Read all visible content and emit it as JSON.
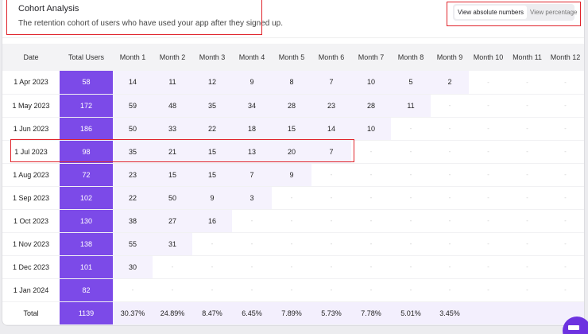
{
  "header": {
    "title": "Cohort Analysis",
    "subtitle": "The retention cohort of users who have used your app after they signed up."
  },
  "toggle": {
    "options": [
      {
        "label": "View absolute numbers",
        "active": true
      },
      {
        "label": "View percentage",
        "active": false
      }
    ]
  },
  "table": {
    "columns": [
      "Date",
      "Total Users",
      "Month 1",
      "Month 2",
      "Month 3",
      "Month 4",
      "Month 5",
      "Month 6",
      "Month 7",
      "Month 8",
      "Month 9",
      "Month 10",
      "Month 11",
      "Month 12"
    ],
    "empty_placeholder": "-",
    "rows": [
      {
        "date": "1 Apr 2023",
        "total": "58",
        "months": [
          "14",
          "11",
          "12",
          "9",
          "8",
          "7",
          "10",
          "5",
          "2"
        ]
      },
      {
        "date": "1 May 2023",
        "total": "172",
        "months": [
          "59",
          "48",
          "35",
          "34",
          "28",
          "23",
          "28",
          "11"
        ]
      },
      {
        "date": "1 Jun 2023",
        "total": "186",
        "months": [
          "50",
          "33",
          "22",
          "18",
          "15",
          "14",
          "10"
        ]
      },
      {
        "date": "1 Jul 2023",
        "total": "98",
        "months": [
          "35",
          "21",
          "15",
          "13",
          "20",
          "7"
        ]
      },
      {
        "date": "1 Aug 2023",
        "total": "72",
        "months": [
          "23",
          "15",
          "15",
          "7",
          "9"
        ]
      },
      {
        "date": "1 Sep 2023",
        "total": "102",
        "months": [
          "22",
          "50",
          "9",
          "3"
        ]
      },
      {
        "date": "1 Oct 2023",
        "total": "130",
        "months": [
          "38",
          "27",
          "16"
        ]
      },
      {
        "date": "1 Nov 2023",
        "total": "138",
        "months": [
          "55",
          "31"
        ]
      },
      {
        "date": "1 Dec 2023",
        "total": "101",
        "months": [
          "30"
        ]
      },
      {
        "date": "1 Jan 2024",
        "total": "82",
        "months": []
      }
    ],
    "total_row": {
      "label": "Total",
      "total": "1139",
      "percentages": [
        "30.37%",
        "24.89%",
        "8.47%",
        "6.45%",
        "7.89%",
        "5.73%",
        "7.78%",
        "5.01%",
        "3.45%"
      ]
    }
  },
  "colors": {
    "accent": "#7c4ae8",
    "filled_cell": "#f5f2fd",
    "highlight": "#e0242b"
  }
}
